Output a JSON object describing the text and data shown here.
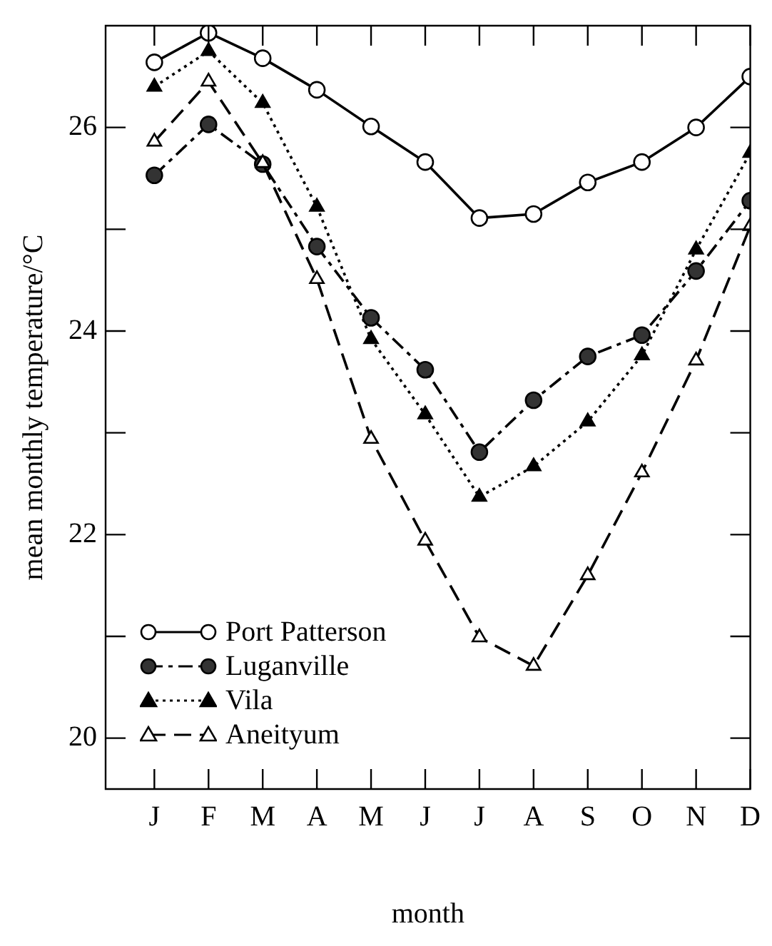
{
  "chart_data": {
    "type": "line",
    "xlabel": "month",
    "ylabel": "mean monthly temperature/°C",
    "categories": [
      "J",
      "F",
      "M",
      "A",
      "M",
      "J",
      "J",
      "A",
      "S",
      "O",
      "N",
      "D"
    ],
    "ylim": [
      19.5,
      27
    ],
    "yticks": [
      20,
      {
        "value": 21,
        "label": null
      },
      22,
      {
        "value": 23,
        "label": null
      },
      24,
      {
        "value": 25,
        "label": null
      },
      26
    ],
    "legend": "bottom left",
    "series": [
      {
        "name": "Port Patterson",
        "color": "#ffffff",
        "marker": "circle",
        "line_style": "solid",
        "values": [
          26.64,
          26.93,
          26.68,
          26.37,
          26.01,
          25.66,
          25.11,
          25.15,
          25.46,
          25.66,
          26.0,
          26.5
        ]
      },
      {
        "name": "Luganville",
        "color": "#333333",
        "marker": "circle",
        "line_style": "dashdot",
        "values": [
          25.53,
          26.03,
          25.64,
          24.83,
          24.13,
          23.62,
          22.81,
          23.32,
          23.75,
          23.96,
          24.59,
          25.28
        ]
      },
      {
        "name": "Vila",
        "color": "#000000",
        "marker": "triangle",
        "line_style": "dotted",
        "values": [
          26.4,
          26.75,
          26.24,
          25.22,
          23.92,
          23.18,
          22.37,
          22.67,
          23.11,
          23.76,
          24.8,
          25.75
        ]
      },
      {
        "name": "Aneityum",
        "color": "#ffffff",
        "marker": "triangle",
        "line_style": "dashed",
        "values": [
          25.86,
          26.45,
          25.65,
          24.51,
          22.94,
          21.94,
          20.99,
          20.71,
          21.6,
          22.61,
          23.71,
          25.03
        ]
      }
    ]
  }
}
